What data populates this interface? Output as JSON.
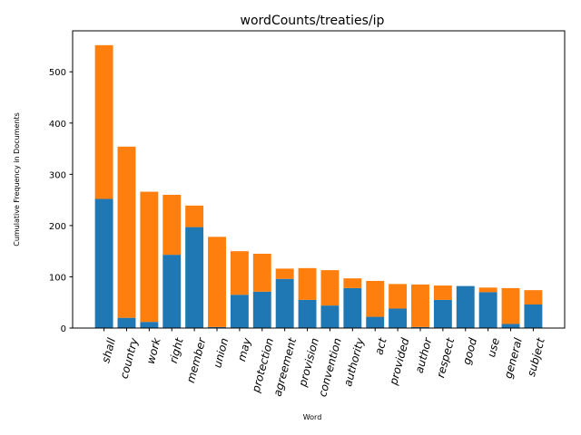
{
  "chart_data": {
    "type": "bar",
    "stacked": true,
    "title": "wordCounts/treaties/ip",
    "xlabel": "Word",
    "ylabel": "Cumulative Frequency in Documents",
    "ylim": [
      0,
      580
    ],
    "yticks": [
      0,
      100,
      200,
      300,
      400,
      500
    ],
    "grid": false,
    "categories": [
      "shall",
      "country",
      "work",
      "right",
      "member",
      "union",
      "may",
      "protection",
      "agreement",
      "provision",
      "convention",
      "authority",
      "act",
      "provided",
      "author",
      "respect",
      "good",
      "use",
      "general",
      "subject"
    ],
    "series": [
      {
        "color": "#1f77b4",
        "values": [
          252,
          20,
          12,
          143,
          197,
          2,
          65,
          71,
          96,
          55,
          44,
          78,
          22,
          38,
          2,
          55,
          82,
          70,
          8,
          46
        ]
      },
      {
        "color": "#ff7f0e",
        "values": [
          300,
          334,
          254,
          117,
          42,
          176,
          85,
          74,
          20,
          62,
          69,
          19,
          70,
          48,
          83,
          28,
          0,
          9,
          70,
          28
        ]
      }
    ]
  }
}
